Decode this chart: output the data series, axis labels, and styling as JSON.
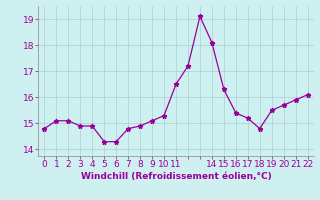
{
  "x": [
    0,
    1,
    2,
    3,
    4,
    5,
    6,
    7,
    8,
    9,
    10,
    11,
    12,
    13,
    14,
    15,
    16,
    17,
    18,
    19,
    20,
    21,
    22
  ],
  "y": [
    14.8,
    15.1,
    15.1,
    14.9,
    14.9,
    14.3,
    14.3,
    14.8,
    14.9,
    15.1,
    15.3,
    16.5,
    17.2,
    19.1,
    18.1,
    16.3,
    15.4,
    15.2,
    14.8,
    15.5,
    15.7,
    15.9,
    16.1
  ],
  "line_color": "#990099",
  "marker": "*",
  "background_color": "#cff0f0",
  "grid_color": "#aacfcf",
  "tick_color": "#990099",
  "label_color": "#990099",
  "xlabel": "Windchill (Refroidissement éolien,°C)",
  "ylabel_ticks": [
    14,
    15,
    16,
    17,
    18,
    19
  ],
  "xlim": [
    -0.5,
    22.5
  ],
  "ylim": [
    13.75,
    19.5
  ],
  "xtick_labels": [
    "0",
    "1",
    "2",
    "3",
    "4",
    "5",
    "6",
    "7",
    "8",
    "9",
    "10",
    "11",
    "",
    "",
    "14",
    "15",
    "16",
    "17",
    "18",
    "19",
    "20",
    "21",
    "22"
  ],
  "font_size": 6.5
}
